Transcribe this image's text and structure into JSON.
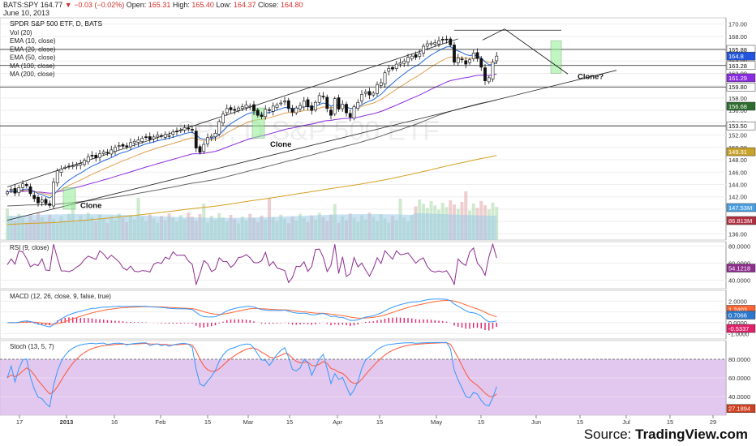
{
  "header": {
    "symbol_line": "BATS:SPY",
    "last": "164.77",
    "change": "−0.03 (−0.02%)",
    "open_label": "Open:",
    "open": "165.31",
    "high_label": "High:",
    "high": "165.40",
    "low_label": "Low:",
    "low": "164.37",
    "close_label": "Close:",
    "close": "164.80",
    "date": "June 10, 2013"
  },
  "source": {
    "prefix": "Source: ",
    "name": "TradingView.com"
  },
  "colors": {
    "ema10": "#2266dd",
    "ema20": "#e0a050",
    "ema50": "#8a2be2",
    "ma100": "#666666",
    "ma200": "#d4a020",
    "rsi": "#8e2d8e",
    "macd": "#3399ff",
    "signal": "#ff6633",
    "hist": "#e0206a",
    "stochK": "#3399ff",
    "stochD": "#ff5533",
    "stochBand": "#d8b4e8",
    "volume": "#9ecbe8",
    "channel": "#222222",
    "clone": "#90ee90"
  },
  "chart_data": [
    {
      "type": "candlestick",
      "title": "SPDR S&P 500 ETF, D, BATS",
      "legend": [
        "Vol (20)",
        "EMA (10, close)",
        "EMA (20, close)",
        "EMA (50, close)",
        "MA (100, close)",
        "MA (200, close)"
      ],
      "x_ticks": [
        "17",
        "2013",
        "16",
        "Feb",
        "15",
        "Mar",
        "15",
        "Apr",
        "15",
        "May",
        "15",
        "Jun",
        "15",
        "Jul",
        "15",
        "29"
      ],
      "ylim": [
        135,
        171
      ],
      "y_ticks": [
        136,
        138,
        140,
        142,
        144,
        146,
        148,
        150,
        152,
        154,
        156,
        158,
        160,
        162,
        164,
        166,
        168,
        170
      ],
      "closes": [
        142.8,
        143.2,
        142.6,
        143.5,
        144.1,
        143.8,
        142.5,
        141.7,
        141.0,
        141.5,
        140.9,
        140.6,
        144.4,
        146.2,
        146.5,
        146.8,
        146.9,
        147.0,
        147.2,
        147.4,
        147.9,
        148.5,
        148.6,
        148.3,
        149.0,
        149.3,
        149.1,
        149.6,
        150.0,
        150.3,
        150.2,
        150.1,
        150.8,
        151.0,
        151.2,
        151.5,
        151.6,
        151.3,
        151.7,
        152.0,
        151.8,
        152.1,
        151.9,
        152.5,
        152.6,
        152.8,
        153.2,
        153.1,
        152.9,
        149.9,
        149.2,
        150.5,
        151.6,
        151.8,
        152.3,
        154.2,
        155.4,
        156.3,
        156.1,
        156.0,
        156.4,
        156.6,
        156.9,
        156.7,
        155.9,
        155.2,
        155.0,
        156.2,
        156.0,
        156.7,
        156.9,
        157.2,
        157.5,
        156.3,
        155.7,
        156.4,
        156.8,
        157.5,
        156.6,
        156.0,
        157.3,
        158.4,
        158.3,
        156.3,
        155.2,
        157.9,
        156.2,
        157.0,
        155.6,
        154.9,
        156.6,
        157.3,
        158.6,
        159.0,
        158.5,
        158.8,
        160.2,
        160.5,
        162.1,
        162.8,
        162.7,
        163.5,
        163.7,
        164.0,
        164.6,
        164.8,
        164.6,
        165.2,
        166.4,
        166.8,
        166.9,
        167.0,
        167.3,
        167.4,
        167.5,
        166.6,
        163.8,
        164.5,
        164.3,
        163.5,
        164.2,
        165.3,
        164.4,
        163.0,
        160.8,
        161.3,
        163.8,
        164.8
      ],
      "series": [
        {
          "name": "Vol (20)",
          "last_label": "86.813M"
        },
        {
          "name": "Vol MA",
          "last_label": "147.53M"
        },
        {
          "name": "EMA (10, close)",
          "last_label": "164.8"
        },
        {
          "name": "EMA (20, close)",
          "last_label": "163.28"
        },
        {
          "name": "EMA (50, close)",
          "last_label": "161.29"
        },
        {
          "name": "MA (100, close)",
          "last_label": "156.68"
        },
        {
          "name": "MA (200, close)",
          "last_label": "149.31"
        }
      ],
      "price_labels": [
        "165.88",
        "163.28",
        "161.29",
        "159.80",
        "156.68",
        "153.50",
        "149.31"
      ],
      "horizontal_levels": [
        169.0,
        165.88,
        163.28,
        159.8,
        153.5
      ],
      "annotations": [
        {
          "text": "Clone"
        },
        {
          "text": "Clone"
        },
        {
          "text": "Clone?"
        }
      ],
      "watermark": "SPY, D     S&P 500 ETF"
    },
    {
      "type": "line",
      "title": "RSI (9, close)",
      "ylim": [
        30,
        85
      ],
      "y_ticks": [
        40,
        60,
        80
      ],
      "y_tick_labels": [
        "40.0000",
        "60.0000",
        "80.0000"
      ],
      "last_label": "54.1218"
    },
    {
      "type": "line",
      "title": "MACD (12, 26, close, 9, false, true)",
      "ylim": [
        -1.5,
        3
      ],
      "y_ticks": [
        -1,
        0,
        1,
        2
      ],
      "y_tick_labels": [
        "-1.0000",
        "0.0000",
        "1.0000",
        "2.0000"
      ],
      "series": [
        {
          "name": "MACD",
          "last_label": "0.7066"
        },
        {
          "name": "Signal",
          "last_label": "1.2403"
        },
        {
          "name": "Histogram",
          "last_label": "-0.5337"
        }
      ]
    },
    {
      "type": "line",
      "title": "Stoch (13, 5, 7)",
      "ylim": [
        20,
        100
      ],
      "y_ticks": [
        40,
        60,
        80
      ],
      "y_tick_labels": [
        "40.0000",
        "60.0000",
        "80.0000"
      ],
      "last_label": "27.1894"
    }
  ]
}
